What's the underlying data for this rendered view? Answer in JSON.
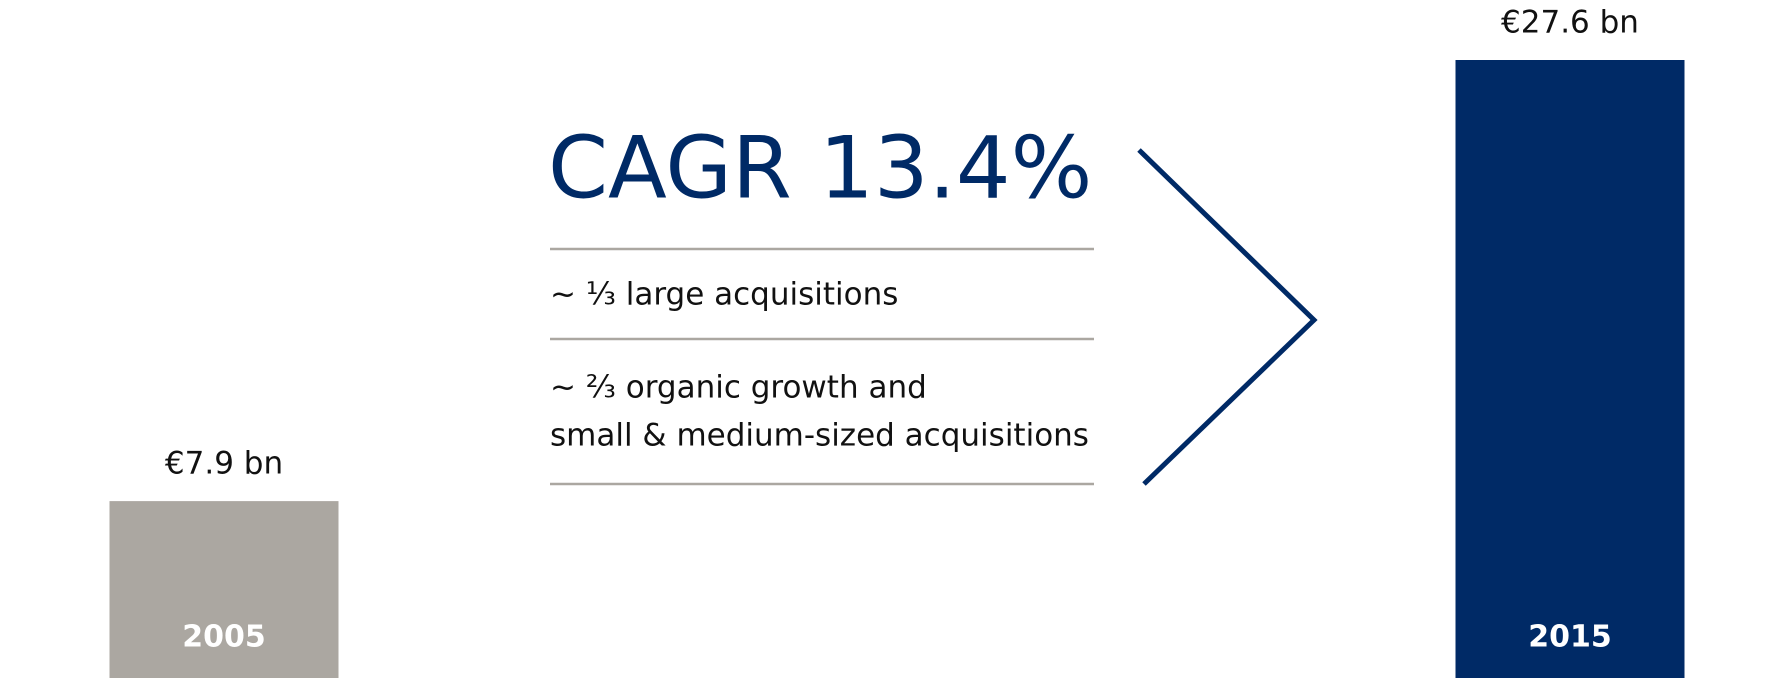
{
  "chart_data": {
    "type": "bar",
    "categories": [
      "2005",
      "2015"
    ],
    "values": [
      7.9,
      27.6
    ],
    "value_labels": [
      "€7.9 bn",
      "€27.6 bn"
    ],
    "colors": [
      "#aba7a1",
      "#002a66"
    ],
    "ylim": [
      0,
      27.6
    ],
    "annotations": [
      "CAGR 13.4%",
      "~ ⅓ large acquisitions",
      "~ ⅔ organic growth and",
      "small & medium-sized acquisitions"
    ]
  }
}
